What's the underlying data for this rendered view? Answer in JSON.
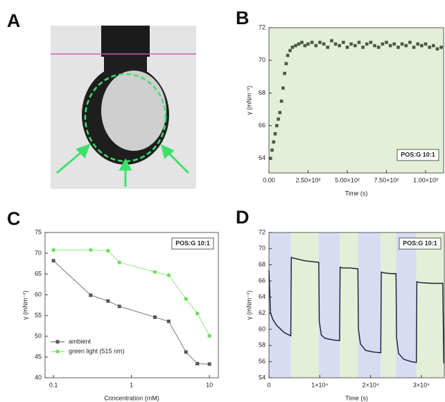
{
  "panel_labels": [
    "A",
    "B",
    "C",
    "D"
  ],
  "chart_data": [
    {
      "type": "scatter",
      "xlabel": "Time (s)",
      "ylabel": "γ (mNm⁻¹)",
      "annotation": "POS:G 10:1",
      "background": "#e3efd6",
      "xlim": [
        0,
        1115
      ],
      "ylim": [
        63.1,
        72
      ],
      "xticks": [
        {
          "value": 0,
          "label": "0.00"
        },
        {
          "value": 250,
          "label": "2.50×10²"
        },
        {
          "value": 500,
          "label": "5.00×10²"
        },
        {
          "value": 750,
          "label": "7.50×10²"
        },
        {
          "value": 1000,
          "label": "1.00×10³"
        }
      ],
      "yticks": [
        64,
        66,
        68,
        70,
        72
      ],
      "series": [
        {
          "name": "POS:G 10:1",
          "color": "#4a5a40",
          "x": [
            10,
            20,
            30,
            40,
            50,
            60,
            70,
            80,
            90,
            100,
            110,
            120,
            135,
            150,
            170,
            190,
            210,
            230,
            250,
            275,
            300,
            325,
            350,
            375,
            400,
            425,
            450,
            475,
            500,
            525,
            550,
            575,
            600,
            625,
            650,
            675,
            700,
            725,
            750,
            775,
            800,
            825,
            850,
            875,
            900,
            925,
            950,
            975,
            1000,
            1025,
            1050,
            1075,
            1100
          ],
          "values": [
            64.0,
            64.5,
            65.0,
            65.5,
            66.0,
            66.4,
            66.8,
            67.5,
            68.3,
            69.2,
            69.8,
            70.3,
            70.6,
            70.8,
            70.9,
            71.0,
            71.1,
            70.9,
            71.0,
            71.1,
            70.9,
            71.1,
            71.0,
            70.8,
            71.2,
            71.0,
            70.9,
            71.1,
            70.8,
            71.0,
            70.9,
            71.1,
            70.8,
            71.0,
            71.1,
            70.9,
            70.8,
            71.0,
            71.1,
            70.9,
            71.0,
            70.8,
            71.0,
            70.9,
            71.1,
            70.8,
            71.0,
            70.9,
            71.0,
            70.8,
            70.9,
            70.7,
            70.8
          ]
        }
      ]
    },
    {
      "type": "line",
      "xlabel": "Concentration (mM)",
      "ylabel": "γ (mNm⁻¹)",
      "annotation": "POS:G 10:1",
      "log_x": true,
      "markers": true,
      "legend": "lower left",
      "xlim": [
        0.078,
        13.0
      ],
      "ylim": [
        40,
        75
      ],
      "xticks": [
        0.1,
        1,
        10
      ],
      "yticks": [
        40,
        45,
        50,
        55,
        60,
        65,
        70,
        75
      ],
      "series": [
        {
          "name": "ambient",
          "color": "#555555",
          "marker_color": "#555555",
          "x": [
            0.1,
            0.3,
            0.5,
            0.7,
            2,
            3,
            5,
            7,
            10
          ],
          "values": [
            68.2,
            59.9,
            58.5,
            57.2,
            54.6,
            53.6,
            46.2,
            43.4,
            43.3
          ]
        },
        {
          "name": "green light (515 nm)",
          "color": "#7ddc6a",
          "marker_color": "#6ee060",
          "x": [
            0.1,
            0.3,
            0.5,
            0.7,
            2,
            3,
            5,
            7,
            10
          ],
          "values": [
            70.8,
            70.8,
            70.6,
            67.8,
            65.5,
            64.7,
            59.0,
            55.5,
            50.1
          ]
        }
      ]
    },
    {
      "type": "line",
      "xlabel": "Time (s)",
      "ylabel": "γ (mNm⁻¹)",
      "annotation": "POS:G 10:1",
      "xlim": [
        0,
        34500
      ],
      "ylim": [
        54,
        72
      ],
      "xticks": [
        0,
        {
          "value": 10000,
          "label": "1×10⁴"
        },
        {
          "value": 20000,
          "label": "2×10⁴"
        },
        {
          "value": 30000,
          "label": "3×10⁴"
        }
      ],
      "yticks": [
        54,
        56,
        58,
        60,
        62,
        64,
        66,
        68,
        70,
        72
      ],
      "regions": [
        {
          "start": 0,
          "end": 4300,
          "color": "#d7dcf3"
        },
        {
          "start": 4300,
          "end": 9800,
          "color": "#e3efd6"
        },
        {
          "start": 9800,
          "end": 13900,
          "color": "#d7dcf3"
        },
        {
          "start": 13900,
          "end": 17500,
          "color": "#e3efd6"
        },
        {
          "start": 17500,
          "end": 22000,
          "color": "#d7dcf3"
        },
        {
          "start": 22000,
          "end": 25000,
          "color": "#e3efd6"
        },
        {
          "start": 25000,
          "end": 29000,
          "color": "#d7dcf3"
        },
        {
          "start": 29000,
          "end": 34500,
          "color": "#e3efd6"
        }
      ],
      "series": [
        {
          "name": "POS:G 10:1",
          "color": "#141a33",
          "x": [
            0,
            300,
            800,
            1500,
            3000,
            4300,
            4400,
            5000,
            7000,
            9800,
            9900,
            10300,
            11000,
            12500,
            13900,
            14000,
            14500,
            16000,
            17500,
            17600,
            18000,
            19000,
            20500,
            22000,
            22100,
            22600,
            24000,
            25000,
            25100,
            25500,
            26500,
            28000,
            29000,
            29100,
            29600,
            32000,
            34200,
            34400
          ],
          "values": [
            67.3,
            62.0,
            61.2,
            60.5,
            59.6,
            59.2,
            68.9,
            68.8,
            68.5,
            68.3,
            61.0,
            59.3,
            58.9,
            58.7,
            58.6,
            67.7,
            67.6,
            67.6,
            67.5,
            60.0,
            58.2,
            57.4,
            57.2,
            57.1,
            67.1,
            67.0,
            66.9,
            66.9,
            59.0,
            57.0,
            56.3,
            56.0,
            55.9,
            65.9,
            65.8,
            65.7,
            65.7,
            55.8
          ]
        }
      ]
    }
  ]
}
